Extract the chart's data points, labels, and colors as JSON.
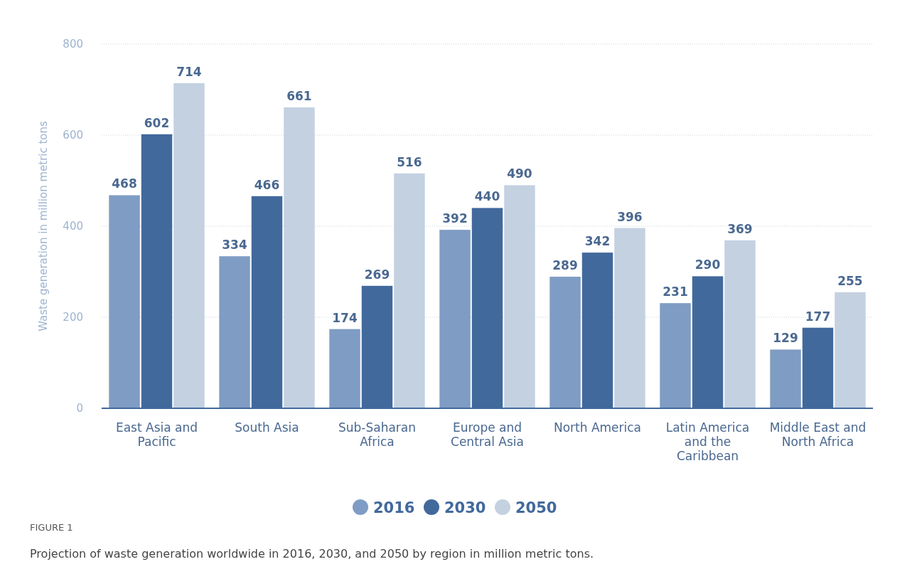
{
  "chart_data": {
    "type": "bar",
    "ylabel": "Waste generation in million metric tons",
    "categories": [
      "East Asia and Pacific",
      "South Asia",
      "Sub-Saharan Africa",
      "Europe and Central Asia",
      "North America",
      "Latin America and the Caribbean",
      "Middle East and North Africa"
    ],
    "series": [
      {
        "name": "2016",
        "color": "#7f9cc4",
        "values": [
          468,
          334,
          174,
          392,
          289,
          231,
          129
        ]
      },
      {
        "name": "2030",
        "color": "#42699c",
        "values": [
          602,
          466,
          269,
          440,
          342,
          290,
          177
        ]
      },
      {
        "name": "2050",
        "color": "#c3d1e1",
        "values": [
          714,
          661,
          516,
          490,
          396,
          369,
          255
        ]
      }
    ],
    "ylim": [
      0,
      800
    ],
    "yticks": [
      0,
      200,
      400,
      600,
      800
    ],
    "grid": "y",
    "legend": "bottom",
    "data_labels": true,
    "annotations": [
      "FIGURE 1",
      "Projection of waste generation worldwide in 2016, 2030, and 2050 by region in million metric tons."
    ]
  }
}
